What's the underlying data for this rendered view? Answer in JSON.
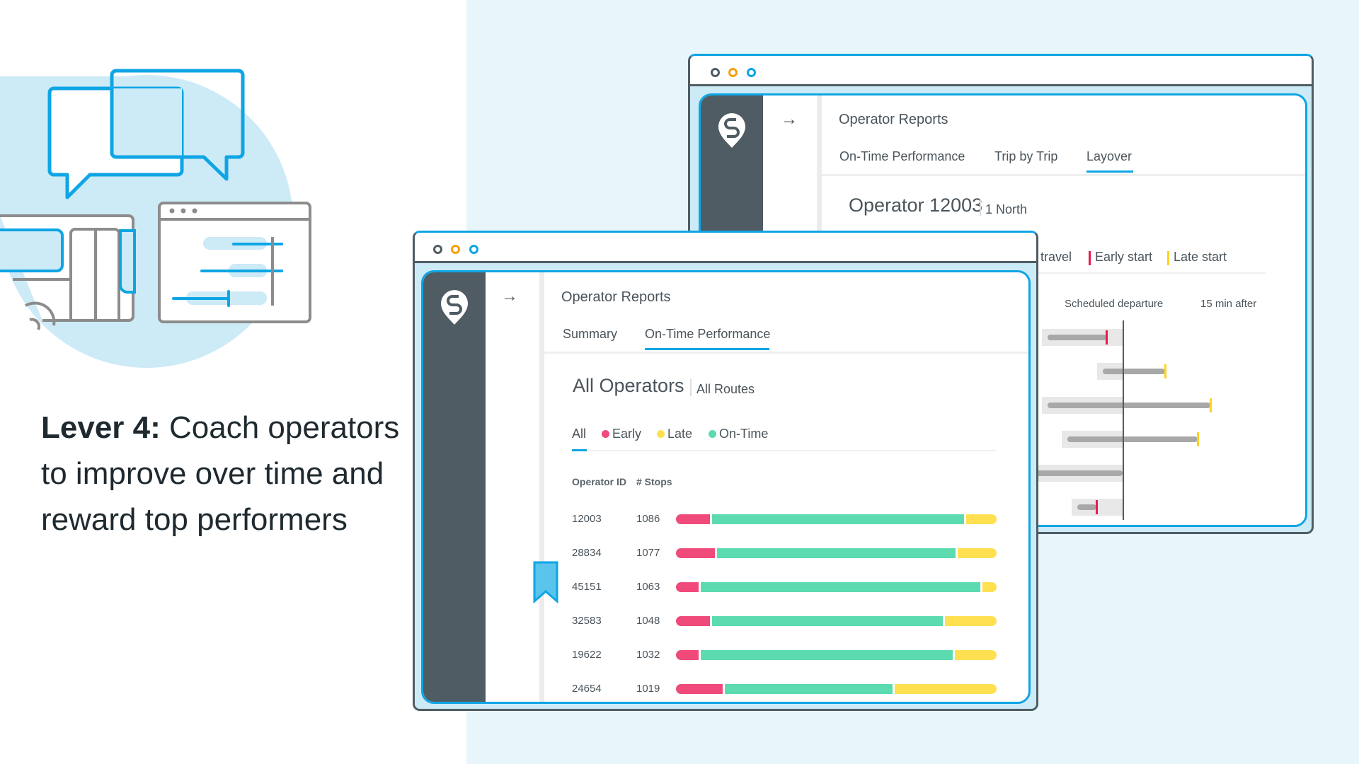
{
  "headline": {
    "bold": "Lever 4:",
    "rest": " Coach operators to improve over time and reward top performers"
  },
  "colors": {
    "accent": "#0ea5e4",
    "early": "#f04a7b",
    "late": "#ffe050",
    "on_time": "#5cdbb0",
    "sidebar": "#505c63"
  },
  "back_window": {
    "app_title": "Operator Reports",
    "tabs": [
      "On-Time Performance",
      "Trip by Trip",
      "Layover"
    ],
    "active_tab": "Layover",
    "title": "Operator 12003",
    "subtitle": "1 North",
    "legend": {
      "travel": "e travel",
      "early": "Early start",
      "late": "Late start"
    },
    "axis": {
      "scheduled": "Scheduled departure",
      "after": "15 min after"
    },
    "layover_rows": [
      {
        "bar_start": -23,
        "bar_end": -5,
        "marker": "early"
      },
      {
        "bar_start": -6,
        "bar_end": 13,
        "marker": "late"
      },
      {
        "bar_start": -23,
        "bar_end": 27,
        "marker": "late"
      },
      {
        "bar_start": -17,
        "bar_end": 23,
        "marker": "late"
      },
      {
        "bar_start": -30,
        "bar_end": 0,
        "marker": null
      },
      {
        "bar_start": -14,
        "bar_end": -8,
        "marker": "early"
      }
    ]
  },
  "front_window": {
    "app_title": "Operator Reports",
    "tabs": [
      "Summary",
      "On-Time Performance"
    ],
    "active_tab": "On-Time Performance",
    "title": "All Operators",
    "subtitle": "All Routes",
    "filters": [
      "All",
      "Early",
      "Late",
      "On-Time"
    ],
    "active_filter": "All",
    "columns": [
      "Operator ID",
      "# Stops"
    ],
    "rows": [
      {
        "id": "12003",
        "stops": "1086",
        "early": 11,
        "on_time": 79,
        "late": 10
      },
      {
        "id": "28834",
        "stops": "1077",
        "early": 12.6,
        "on_time": 74.8,
        "late": 12.6
      },
      {
        "id": "45151",
        "stops": "1063",
        "early": 7.5,
        "on_time": 87.7,
        "late": 4.8
      },
      {
        "id": "32583",
        "stops": "1048",
        "early": 11,
        "on_time": 72.4,
        "late": 16.6
      },
      {
        "id": "19622",
        "stops": "1032",
        "early": 7.5,
        "on_time": 79,
        "late": 13.5
      },
      {
        "id": "24654",
        "stops": "1019",
        "early": 15,
        "on_time": 52.8,
        "late": 32.2
      }
    ]
  }
}
